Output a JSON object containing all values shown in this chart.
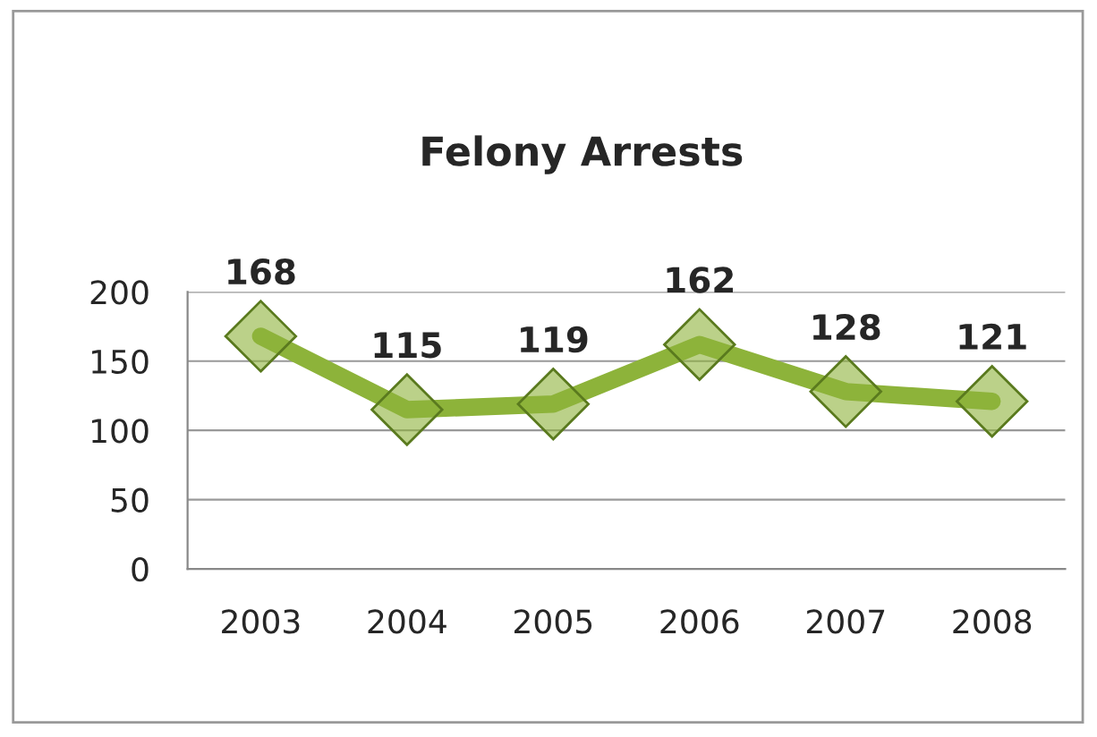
{
  "chart_data": {
    "type": "line",
    "title": "Felony Arrests",
    "categories": [
      "2003",
      "2004",
      "2005",
      "2006",
      "2007",
      "2008"
    ],
    "series": [
      {
        "color": "#8db33a",
        "values": [
          168,
          115,
          119,
          162,
          128,
          121
        ]
      }
    ],
    "ylim": [
      0,
      200
    ],
    "yticks": [
      0,
      50,
      100,
      150,
      200
    ],
    "grid": "y",
    "marker": "diamond",
    "line_style": "solid",
    "data_labels": true,
    "legend": false
  }
}
